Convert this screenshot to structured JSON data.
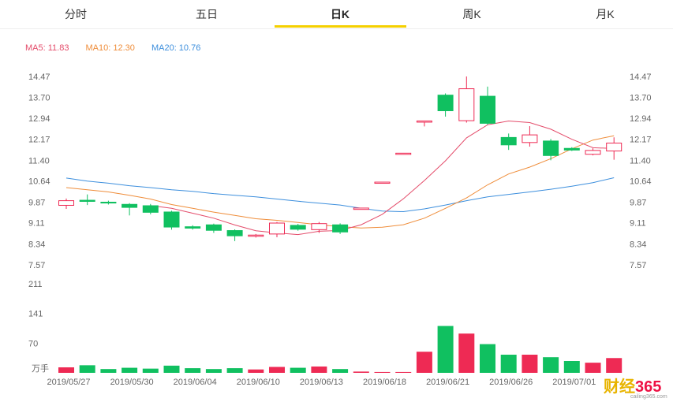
{
  "tabs": [
    {
      "label": "分时",
      "active": false
    },
    {
      "label": "五日",
      "active": false
    },
    {
      "label": "日K",
      "active": true
    },
    {
      "label": "周K",
      "active": false
    },
    {
      "label": "月K",
      "active": false
    }
  ],
  "colors": {
    "up": "#ee2a54",
    "down": "#10c060",
    "ma5": "#e44d6b",
    "ma10": "#ef8d3a",
    "ma20": "#3d8fdd",
    "accent": "#f5d000"
  },
  "ma": {
    "ma5": "MA5: 11.83",
    "ma10": "MA10: 12.30",
    "ma20": "MA20: 10.76"
  },
  "chart_data": {
    "type": "candlestick",
    "price_ticks": [
      "14.47",
      "13.70",
      "12.94",
      "12.17",
      "11.40",
      "10.64",
      "9.87",
      "9.11",
      "8.34",
      "7.57"
    ],
    "ylim": [
      7.57,
      14.47
    ],
    "volume_ticks": [
      "211",
      "141",
      "70"
    ],
    "volume_unit": "万手",
    "x_labels": [
      "2019/05/27",
      "2019/05/30",
      "2019/06/04",
      "2019/06/10",
      "2019/06/13",
      "2019/06/18",
      "2019/06/21",
      "2019/06/26",
      "2019/07/01"
    ],
    "candles": [
      {
        "o": 9.75,
        "c": 9.92,
        "h": 10.0,
        "l": 9.62
      },
      {
        "o": 9.95,
        "c": 9.88,
        "h": 10.15,
        "l": 9.76
      },
      {
        "o": 9.88,
        "c": 9.82,
        "h": 9.92,
        "l": 9.78
      },
      {
        "o": 9.8,
        "c": 9.66,
        "h": 9.83,
        "l": 9.38
      },
      {
        "o": 9.75,
        "c": 9.48,
        "h": 9.8,
        "l": 9.42
      },
      {
        "o": 9.52,
        "c": 8.94,
        "h": 9.55,
        "l": 8.86
      },
      {
        "o": 8.98,
        "c": 8.9,
        "h": 9.02,
        "l": 8.86
      },
      {
        "o": 9.05,
        "c": 8.82,
        "h": 9.08,
        "l": 8.74
      },
      {
        "o": 8.84,
        "c": 8.62,
        "h": 8.87,
        "l": 8.44
      },
      {
        "o": 8.64,
        "c": 8.66,
        "h": 8.7,
        "l": 8.57
      },
      {
        "o": 8.7,
        "c": 9.1,
        "h": 9.14,
        "l": 8.58
      },
      {
        "o": 9.03,
        "c": 8.86,
        "h": 9.07,
        "l": 8.82
      },
      {
        "o": 8.86,
        "c": 9.08,
        "h": 9.14,
        "l": 8.74
      },
      {
        "o": 9.05,
        "c": 8.76,
        "h": 9.09,
        "l": 8.7
      },
      {
        "o": 9.6,
        "c": 9.65,
        "h": 9.65,
        "l": 9.6
      },
      {
        "o": 10.57,
        "c": 10.6,
        "h": 10.6,
        "l": 10.55
      },
      {
        "o": 11.62,
        "c": 11.66,
        "h": 11.66,
        "l": 11.62
      },
      {
        "o": 12.8,
        "c": 12.84,
        "h": 12.84,
        "l": 12.64
      },
      {
        "o": 13.8,
        "c": 13.2,
        "h": 13.85,
        "l": 13.0
      },
      {
        "o": 12.85,
        "c": 14.02,
        "h": 14.47,
        "l": 12.78
      },
      {
        "o": 13.76,
        "c": 12.74,
        "h": 14.1,
        "l": 12.7
      },
      {
        "o": 12.25,
        "c": 11.95,
        "h": 12.38,
        "l": 11.78
      },
      {
        "o": 12.05,
        "c": 12.33,
        "h": 12.65,
        "l": 11.9
      },
      {
        "o": 12.12,
        "c": 11.56,
        "h": 12.18,
        "l": 11.4
      },
      {
        "o": 11.85,
        "c": 11.76,
        "h": 11.88,
        "l": 11.74
      },
      {
        "o": 11.62,
        "c": 11.76,
        "h": 11.84,
        "l": 11.58
      },
      {
        "o": 11.74,
        "c": 12.03,
        "h": 12.24,
        "l": 11.42
      }
    ],
    "volumes": [
      13,
      18,
      9,
      12,
      10,
      17,
      11,
      9,
      11,
      8,
      14,
      12,
      15,
      9,
      3,
      2,
      2,
      50,
      111,
      93,
      68,
      43,
      43,
      37,
      28,
      24,
      35
    ],
    "ma5": [
      null,
      null,
      null,
      null,
      9.74,
      9.64,
      9.46,
      9.28,
      9.03,
      8.82,
      8.74,
      8.68,
      8.8,
      8.83,
      9.04,
      9.42,
      9.99,
      10.66,
      11.38,
      12.22,
      12.7,
      12.84,
      12.78,
      12.54,
      12.17,
      11.86,
      11.83
    ],
    "ma10": [
      10.4,
      10.32,
      10.24,
      10.12,
      9.98,
      9.78,
      9.64,
      9.5,
      9.38,
      9.26,
      9.2,
      9.12,
      9.04,
      8.97,
      8.92,
      8.95,
      9.04,
      9.28,
      9.64,
      10.02,
      10.5,
      10.9,
      11.15,
      11.46,
      11.82,
      12.14,
      12.3
    ],
    "ma20": [
      10.75,
      10.64,
      10.56,
      10.47,
      10.4,
      10.32,
      10.26,
      10.18,
      10.12,
      10.06,
      9.98,
      9.9,
      9.83,
      9.76,
      9.64,
      9.54,
      9.52,
      9.62,
      9.76,
      9.92,
      10.06,
      10.15,
      10.24,
      10.34,
      10.45,
      10.58,
      10.76
    ]
  }
}
